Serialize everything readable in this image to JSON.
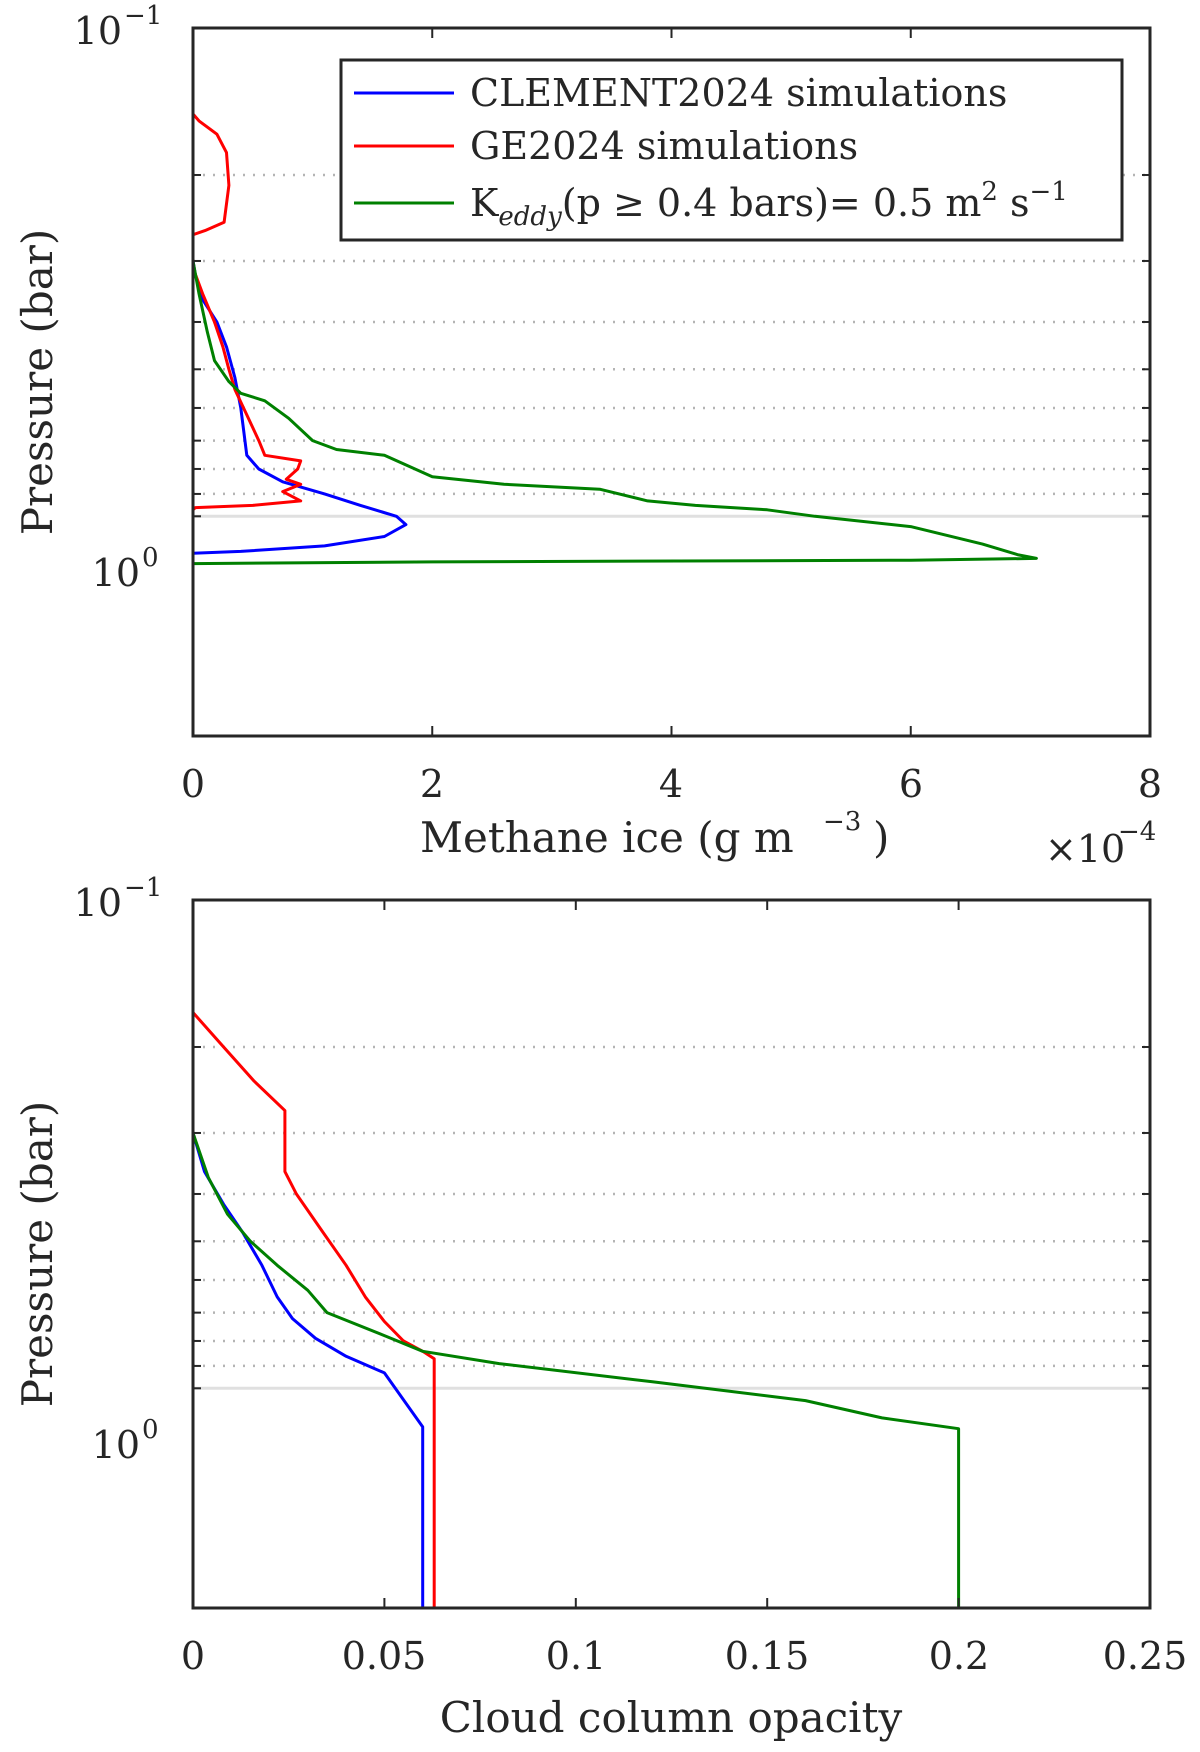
{
  "chart_data": [
    {
      "type": "line",
      "id": "top",
      "xlabel_text": "Methane ice (g m",
      "xlabel_sup": "−3",
      "xlabel_close": ")",
      "x_multiplier_base": "×10",
      "x_multiplier_exp": "−4",
      "ylabel": "Pressure (bar)",
      "xlim": [
        0,
        0.0008
      ],
      "ylim_log": [
        -1,
        0.45
      ],
      "x_ticks": [
        {
          "v": 0,
          "label": "0"
        },
        {
          "v": 0.0002,
          "label": "2"
        },
        {
          "v": 0.0004,
          "label": "4"
        },
        {
          "v": 0.0006,
          "label": "6"
        },
        {
          "v": 0.0008,
          "label": "8"
        }
      ],
      "y_ticks": [
        {
          "p": 0.1,
          "base": "10",
          "exp": "−1"
        },
        {
          "p": 1.0,
          "base": "10",
          "exp": "0"
        }
      ],
      "minor_grid_p": [
        0.2,
        0.3,
        0.4,
        0.5,
        0.6,
        0.7,
        0.8,
        0.9
      ],
      "major_grid_p": [
        1.0
      ],
      "legend": [
        {
          "label": "CLEMENT2024 simulations",
          "color": "#0000ff"
        },
        {
          "label": "GE2024 simulations",
          "color": "#ff0000"
        },
        {
          "label_main": "K",
          "label_sub": "eddy",
          "label_rest": "(p ≥ 0.4 bars)= 0.5 m",
          "label_sup1": "2",
          "label_s": " s",
          "label_sup2": "−1",
          "color": "#008000"
        }
      ],
      "series": [
        {
          "name": "CLEMENT2024 simulations",
          "color": "#0000ff",
          "points": [
            [
              0,
              0.1
            ],
            [
              0,
              0.3
            ],
            [
              2e-06,
              0.32
            ],
            [
              8e-06,
              0.36
            ],
            [
              2e-05,
              0.4
            ],
            [
              2.8e-05,
              0.45
            ],
            [
              3.5e-05,
              0.52
            ],
            [
              4e-05,
              0.6
            ],
            [
              4.5e-05,
              0.75
            ],
            [
              5.5e-05,
              0.8
            ],
            [
              7.5e-05,
              0.85
            ],
            [
              0.00011,
              0.9
            ],
            [
              0.00014,
              0.95
            ],
            [
              0.00017,
              1.0
            ],
            [
              0.000178,
              1.04
            ],
            [
              0.00016,
              1.1
            ],
            [
              0.00011,
              1.15
            ],
            [
              4e-05,
              1.18
            ],
            [
              0,
              1.19
            ],
            [
              0,
              2.8
            ]
          ]
        },
        {
          "name": "GE2024 simulations",
          "color": "#ff0000",
          "points": [
            [
              0,
              0.1
            ],
            [
              0,
              0.15
            ],
            [
              5e-06,
              0.155
            ],
            [
              2e-05,
              0.165
            ],
            [
              2.8e-05,
              0.18
            ],
            [
              3e-05,
              0.21
            ],
            [
              2.6e-05,
              0.25
            ],
            [
              1e-05,
              0.26
            ],
            [
              0,
              0.265
            ],
            [
              0,
              0.31
            ],
            [
              8e-06,
              0.35
            ],
            [
              1.8e-05,
              0.4
            ],
            [
              2.5e-05,
              0.45
            ],
            [
              3e-05,
              0.5
            ],
            [
              3.5e-05,
              0.55
            ],
            [
              4.5e-05,
              0.62
            ],
            [
              5.5e-05,
              0.7
            ],
            [
              6e-05,
              0.75
            ],
            [
              9e-05,
              0.77
            ],
            [
              8.75e-05,
              0.8
            ],
            [
              7.8e-05,
              0.84
            ],
            [
              9e-05,
              0.86
            ],
            [
              7.5e-05,
              0.89
            ],
            [
              9e-05,
              0.93
            ],
            [
              5e-05,
              0.95
            ],
            [
              2e-06,
              0.96
            ],
            [
              0,
              0.97
            ],
            [
              0,
              2.8
            ]
          ]
        },
        {
          "name": "Keddy",
          "color": "#008000",
          "points": [
            [
              0,
              0.1
            ],
            [
              0,
              0.3
            ],
            [
              5e-06,
              0.35
            ],
            [
              1.2e-05,
              0.42
            ],
            [
              1.8e-05,
              0.48
            ],
            [
              3e-05,
              0.53
            ],
            [
              4e-05,
              0.56
            ],
            [
              6e-05,
              0.58
            ],
            [
              8e-05,
              0.63
            ],
            [
              0.0001,
              0.7
            ],
            [
              0.00012,
              0.73
            ],
            [
              0.00016,
              0.75
            ],
            [
              0.0002,
              0.83
            ],
            [
              0.00026,
              0.86
            ],
            [
              0.00034,
              0.88
            ],
            [
              0.00038,
              0.93
            ],
            [
              0.00042,
              0.95
            ],
            [
              0.00048,
              0.97
            ],
            [
              0.00052,
              1.0
            ],
            [
              0.0006,
              1.05
            ],
            [
              0.00066,
              1.14
            ],
            [
              0.00069,
              1.2
            ],
            [
              0.000705,
              1.22
            ],
            [
              0.0006,
              1.23
            ],
            [
              0.0002,
              1.24
            ],
            [
              0,
              1.25
            ],
            [
              0,
              2.8
            ]
          ]
        }
      ]
    },
    {
      "type": "line",
      "id": "bottom",
      "xlabel": "Cloud column opacity",
      "ylabel": "Pressure (bar)",
      "xlim": [
        0,
        0.25
      ],
      "ylim_log": [
        -1,
        0.45
      ],
      "x_ticks": [
        {
          "v": 0,
          "label": "0"
        },
        {
          "v": 0.05,
          "label": "0.05"
        },
        {
          "v": 0.1,
          "label": "0.1"
        },
        {
          "v": 0.15,
          "label": "0.15"
        },
        {
          "v": 0.2,
          "label": "0.2"
        },
        {
          "v": 0.25,
          "label": "0.25"
        }
      ],
      "y_ticks": [
        {
          "p": 0.1,
          "base": "10",
          "exp": "−1"
        },
        {
          "p": 1.0,
          "base": "10",
          "exp": "0"
        }
      ],
      "minor_grid_p": [
        0.2,
        0.3,
        0.4,
        0.5,
        0.6,
        0.7,
        0.8,
        0.9
      ],
      "major_grid_p": [
        1.0
      ],
      "series": [
        {
          "name": "CLEMENT2024 simulations",
          "color": "#0000ff",
          "points": [
            [
              0,
              0.1
            ],
            [
              0,
              0.3
            ],
            [
              0.003,
              0.36
            ],
            [
              0.008,
              0.42
            ],
            [
              0.013,
              0.48
            ],
            [
              0.018,
              0.56
            ],
            [
              0.022,
              0.65
            ],
            [
              0.026,
              0.72
            ],
            [
              0.032,
              0.79
            ],
            [
              0.04,
              0.86
            ],
            [
              0.05,
              0.93
            ],
            [
              0.06,
              1.2
            ],
            [
              0.06,
              2.8
            ]
          ]
        },
        {
          "name": "GE2024 simulations",
          "color": "#ff0000",
          "points": [
            [
              0,
              0.1
            ],
            [
              0,
              0.17
            ],
            [
              0.008,
              0.2
            ],
            [
              0.016,
              0.235
            ],
            [
              0.024,
              0.27
            ],
            [
              0.024,
              0.36
            ],
            [
              0.027,
              0.4
            ],
            [
              0.034,
              0.48
            ],
            [
              0.04,
              0.56
            ],
            [
              0.045,
              0.65
            ],
            [
              0.05,
              0.73
            ],
            [
              0.055,
              0.8
            ],
            [
              0.06,
              0.84
            ],
            [
              0.063,
              0.87
            ],
            [
              0.063,
              2.8
            ]
          ]
        },
        {
          "name": "Keddy",
          "color": "#008000",
          "points": [
            [
              0,
              0.1
            ],
            [
              0,
              0.3
            ],
            [
              0.004,
              0.37
            ],
            [
              0.009,
              0.44
            ],
            [
              0.015,
              0.5
            ],
            [
              0.022,
              0.56
            ],
            [
              0.03,
              0.63
            ],
            [
              0.035,
              0.7
            ],
            [
              0.05,
              0.78
            ],
            [
              0.06,
              0.84
            ],
            [
              0.08,
              0.89
            ],
            [
              0.12,
              0.97
            ],
            [
              0.16,
              1.06
            ],
            [
              0.18,
              1.15
            ],
            [
              0.2,
              1.21
            ],
            [
              0.2,
              2.8
            ]
          ]
        }
      ]
    }
  ]
}
